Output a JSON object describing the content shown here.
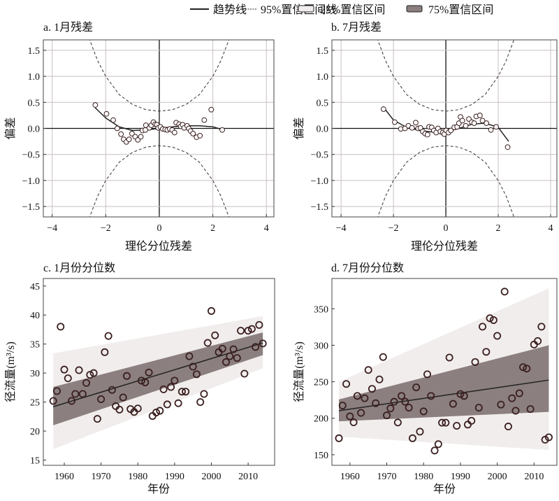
{
  "legend": {
    "items": [
      {
        "label": "趋势线",
        "kind": "line"
      },
      {
        "label": "95%置信区间线",
        "kind": "dashed"
      },
      {
        "label": "25%置信区间",
        "kind": "band-light"
      },
      {
        "label": "75%置信区间",
        "kind": "band-dark"
      }
    ]
  },
  "colors": {
    "band_light": "#f1eded",
    "band_dark": "#8b7f7f",
    "point_stroke": "#3b1f1f",
    "grid": "#c9c1c1",
    "line": "#222222"
  },
  "chart_data": [
    {
      "type": "scatter",
      "title": "a. 1月残差",
      "xlabel": "理伦分位残差",
      "ylabel": "偏差",
      "xlim": [
        -4.33,
        4.28
      ],
      "ylim": [
        -1.7,
        1.7
      ],
      "xticks": [
        -4,
        -2,
        0,
        2,
        4
      ],
      "xtick_labels": [
        "−4",
        "−2",
        "0",
        "2",
        "4"
      ],
      "yticks": [
        1.5,
        1.0,
        0.5,
        0.0,
        -0.5,
        -1.0,
        -1.5
      ],
      "ytick_labels": [
        "1.5",
        "1.0",
        "0.5",
        "0.0",
        "−0.5",
        "−1.0",
        "−1.5"
      ],
      "grid": true,
      "points": [
        [
          -2.39,
          0.45
        ],
        [
          -1.97,
          0.28
        ],
        [
          -1.72,
          0.16
        ],
        [
          -1.57,
          0.0
        ],
        [
          -1.43,
          -0.11
        ],
        [
          -1.33,
          -0.21
        ],
        [
          -1.23,
          -0.26
        ],
        [
          -1.13,
          -0.21
        ],
        [
          -1.02,
          -0.1
        ],
        [
          -0.9,
          -0.16
        ],
        [
          -0.8,
          -0.22
        ],
        [
          -0.69,
          -0.16
        ],
        [
          -0.63,
          -0.04
        ],
        [
          -0.52,
          -0.03
        ],
        [
          -0.5,
          0.06
        ],
        [
          -0.37,
          0.01
        ],
        [
          -0.3,
          0.06
        ],
        [
          -0.22,
          0.12
        ],
        [
          -0.15,
          0.08
        ],
        [
          -0.09,
          0.07
        ],
        [
          -0.04,
          0.01
        ],
        [
          0.04,
          0.03
        ],
        [
          0.13,
          -0.01
        ],
        [
          0.22,
          -0.02
        ],
        [
          0.3,
          -0.03
        ],
        [
          0.39,
          -0.01
        ],
        [
          0.48,
          -0.03
        ],
        [
          0.57,
          -0.08
        ],
        [
          0.63,
          0.11
        ],
        [
          0.74,
          0.08
        ],
        [
          0.8,
          0.04
        ],
        [
          0.87,
          0.07
        ],
        [
          0.93,
          0.01
        ],
        [
          1.04,
          0.05
        ],
        [
          1.1,
          0.0
        ],
        [
          1.17,
          -0.05
        ],
        [
          1.26,
          -0.1
        ],
        [
          1.39,
          -0.17
        ],
        [
          1.52,
          -0.14
        ],
        [
          1.68,
          0.16
        ],
        [
          1.94,
          0.36
        ],
        [
          2.35,
          -0.03
        ]
      ],
      "trend": [
        [
          -2.4,
          0.4
        ],
        [
          -2.0,
          0.2
        ],
        [
          -1.5,
          0.03
        ],
        [
          -1.0,
          -0.04
        ],
        [
          -0.5,
          -0.03
        ],
        [
          0,
          0.0
        ],
        [
          0.5,
          0.03
        ],
        [
          1.0,
          0.05
        ],
        [
          1.5,
          0.05
        ],
        [
          2.0,
          0.03
        ],
        [
          2.4,
          -0.03
        ]
      ],
      "ci95_x": [
        -2.8,
        -2.6,
        -2.3,
        -2.0,
        -1.5,
        -1.0,
        -0.5,
        0,
        0.5,
        1.0,
        1.5,
        2.0,
        2.3,
        2.6,
        2.8
      ],
      "ci95_upper": [
        2.2,
        1.7,
        1.3,
        1.0,
        0.65,
        0.46,
        0.36,
        0.33,
        0.36,
        0.46,
        0.65,
        1.0,
        1.3,
        1.7,
        2.2
      ],
      "ci95_lower": [
        -2.2,
        -1.7,
        -1.3,
        -1.0,
        -0.65,
        -0.46,
        -0.36,
        -0.33,
        -0.36,
        -0.46,
        -0.65,
        -1.0,
        -1.3,
        -1.7,
        -2.2
      ]
    },
    {
      "type": "scatter",
      "title": "b. 7月残差",
      "xlabel": "理伦分位残差",
      "ylabel": "偏差",
      "xlim": [
        -4.35,
        4.24
      ],
      "ylim": [
        -1.7,
        1.7
      ],
      "xticks": [
        -4,
        -2,
        0,
        2,
        4
      ],
      "xtick_labels": [
        "−4",
        "−2",
        "0",
        "2",
        "4"
      ],
      "yticks": [
        1.5,
        1.0,
        0.5,
        0.0,
        -0.5,
        -1.0,
        -1.5
      ],
      "ytick_labels": [
        "1.5",
        "1.0",
        "0.5",
        "0.0",
        "−0.5",
        "−1.0",
        "−1.5"
      ],
      "grid": true,
      "points": [
        [
          -2.38,
          0.37
        ],
        [
          -1.95,
          0.12
        ],
        [
          -1.72,
          -0.01
        ],
        [
          -1.56,
          0.0
        ],
        [
          -1.43,
          0.05
        ],
        [
          -1.29,
          0.01
        ],
        [
          -1.15,
          0.11
        ],
        [
          -1.06,
          0.0
        ],
        [
          -0.97,
          0.01
        ],
        [
          -0.88,
          -0.06
        ],
        [
          -0.79,
          -0.1
        ],
        [
          -0.7,
          -0.12
        ],
        [
          -0.64,
          0.03
        ],
        [
          -0.54,
          0.02
        ],
        [
          -0.46,
          -0.04
        ],
        [
          -0.37,
          -0.08
        ],
        [
          -0.3,
          0.0
        ],
        [
          -0.21,
          -0.06
        ],
        [
          -0.12,
          -0.08
        ],
        [
          -0.06,
          -0.11
        ],
        [
          0.01,
          -0.04
        ],
        [
          0.1,
          -0.08
        ],
        [
          0.19,
          -0.04
        ],
        [
          0.32,
          0.02
        ],
        [
          0.43,
          0.03
        ],
        [
          0.5,
          0.1
        ],
        [
          0.56,
          0.22
        ],
        [
          0.63,
          0.15
        ],
        [
          0.76,
          0.05
        ],
        [
          0.88,
          0.18
        ],
        [
          0.99,
          0.12
        ],
        [
          1.08,
          0.1
        ],
        [
          1.16,
          0.23
        ],
        [
          1.3,
          0.25
        ],
        [
          1.4,
          0.15
        ],
        [
          1.55,
          0.1
        ],
        [
          1.72,
          -0.03
        ],
        [
          1.92,
          0.03
        ],
        [
          2.36,
          -0.36
        ]
      ],
      "trend": [
        [
          -2.4,
          0.42
        ],
        [
          -2.0,
          0.16
        ],
        [
          -1.5,
          0.02
        ],
        [
          -1.0,
          -0.04
        ],
        [
          -0.5,
          -0.07
        ],
        [
          0,
          -0.07
        ],
        [
          0.5,
          0.0
        ],
        [
          1.0,
          0.08
        ],
        [
          1.5,
          0.1
        ],
        [
          2.0,
          0.02
        ],
        [
          2.4,
          -0.25
        ]
      ],
      "ci95_x": [
        -2.8,
        -2.6,
        -2.3,
        -2.0,
        -1.5,
        -1.0,
        -0.5,
        0,
        0.5,
        1.0,
        1.5,
        2.0,
        2.3,
        2.6,
        2.8
      ],
      "ci95_upper": [
        2.2,
        1.7,
        1.3,
        1.0,
        0.65,
        0.46,
        0.36,
        0.33,
        0.36,
        0.46,
        0.65,
        1.0,
        1.3,
        1.7,
        2.2
      ],
      "ci95_lower": [
        -2.2,
        -1.7,
        -1.3,
        -1.0,
        -0.65,
        -0.46,
        -0.36,
        -0.33,
        -0.36,
        -0.46,
        -0.65,
        -1.0,
        -1.3,
        -1.7,
        -2.2
      ]
    },
    {
      "type": "scatter",
      "title": "c. 1月份分位数",
      "xlabel": "年份",
      "ylabel": "径流量(m³/s)",
      "xlim": [
        1954.3,
        2017.2
      ],
      "ylim": [
        14.1,
        46.3
      ],
      "xticks": [
        1960,
        1970,
        1980,
        1990,
        2000,
        2010
      ],
      "xtick_labels": [
        "1960",
        "1970",
        "1980",
        "1990",
        "2000",
        "2010"
      ],
      "yticks": [
        45,
        40,
        35,
        30,
        25,
        20,
        15
      ],
      "ytick_labels": [
        "45",
        "40",
        "35",
        "30",
        "25",
        "20",
        "15"
      ],
      "grid": false,
      "points": [
        [
          1957,
          25.2
        ],
        [
          1958,
          26.9
        ],
        [
          1959,
          38.0
        ],
        [
          1960,
          30.6
        ],
        [
          1961,
          29.1
        ],
        [
          1962,
          25.2
        ],
        [
          1963,
          26.4
        ],
        [
          1964,
          30.5
        ],
        [
          1965,
          26.4
        ],
        [
          1966,
          28.3
        ],
        [
          1967,
          29.7
        ],
        [
          1968,
          30.0
        ],
        [
          1969,
          22.1
        ],
        [
          1970,
          25.5
        ],
        [
          1971,
          33.6
        ],
        [
          1972,
          36.4
        ],
        [
          1973,
          27.1
        ],
        [
          1974,
          24.3
        ],
        [
          1975,
          23.7
        ],
        [
          1976,
          25.8
        ],
        [
          1977,
          29.5
        ],
        [
          1978,
          23.8
        ],
        [
          1979,
          23.3
        ],
        [
          1980,
          23.9
        ],
        [
          1981,
          28.7
        ],
        [
          1982,
          28.4
        ],
        [
          1983,
          30.1
        ],
        [
          1984,
          22.6
        ],
        [
          1985,
          23.2
        ],
        [
          1986,
          23.5
        ],
        [
          1987,
          27.2
        ],
        [
          1988,
          24.6
        ],
        [
          1989,
          27.6
        ],
        [
          1990,
          28.7
        ],
        [
          1991,
          24.8
        ],
        [
          1992,
          26.8
        ],
        [
          1993,
          26.8
        ],
        [
          1994,
          32.9
        ],
        [
          1995,
          31.1
        ],
        [
          1996,
          29.8
        ],
        [
          1997,
          25.0
        ],
        [
          1998,
          26.4
        ],
        [
          1999,
          35.2
        ],
        [
          2000,
          40.7
        ],
        [
          2001,
          36.5
        ],
        [
          2002,
          33.6
        ],
        [
          2003,
          34.2
        ],
        [
          2004,
          31.9
        ],
        [
          2005,
          32.9
        ],
        [
          2006,
          34.1
        ],
        [
          2007,
          32.6
        ],
        [
          2008,
          37.3
        ],
        [
          2009,
          29.9
        ],
        [
          2010,
          37.3
        ],
        [
          2011,
          37.6
        ],
        [
          2012,
          34.5
        ],
        [
          2013,
          38.3
        ],
        [
          2014,
          35.1
        ]
      ],
      "trend": [
        [
          1957,
          24.2
        ],
        [
          2014,
          35.2
        ]
      ],
      "band75": {
        "x": [
          1957,
          2014
        ],
        "lower": [
          21.0,
          33.1
        ],
        "upper": [
          27.6,
          37.0
        ]
      },
      "band25": {
        "x": [
          1957,
          2014
        ],
        "lower": [
          16.9,
          30.8
        ],
        "upper": [
          33.4,
          39.8
        ]
      }
    },
    {
      "type": "scatter",
      "title": "d. 7月份分位数",
      "xlabel": "年份",
      "ylabel": "径流量(m³/s)",
      "xlim": [
        1955.1,
        2016.2
      ],
      "ylim": [
        135.5,
        391.5
      ],
      "xticks": [
        1960,
        1970,
        1980,
        1990,
        2000,
        2010
      ],
      "xtick_labels": [
        "1960",
        "1970",
        "1980",
        "1990",
        "2000",
        "2010"
      ],
      "yticks": [
        350,
        300,
        250,
        200,
        150
      ],
      "ytick_labels": [
        "350",
        "300",
        "250",
        "200",
        "150"
      ],
      "grid": false,
      "points": [
        [
          1957,
          172.6
        ],
        [
          1958,
          217.4
        ],
        [
          1959,
          247
        ],
        [
          1960,
          202.6
        ],
        [
          1961,
          194.5
        ],
        [
          1962,
          230.6
        ],
        [
          1963,
          207.4
        ],
        [
          1964,
          227.4
        ],
        [
          1965,
          266.1
        ],
        [
          1966,
          240.3
        ],
        [
          1967,
          220.6
        ],
        [
          1968,
          253.2
        ],
        [
          1969,
          283.9
        ],
        [
          1970,
          203.9
        ],
        [
          1971,
          213.5
        ],
        [
          1972,
          222.6
        ],
        [
          1973,
          194.2
        ],
        [
          1974,
          230.6
        ],
        [
          1975,
          222.6
        ],
        [
          1976,
          214.5
        ],
        [
          1977,
          172.6
        ],
        [
          1978,
          242.3
        ],
        [
          1979,
          181.6
        ],
        [
          1980,
          209.4
        ],
        [
          1981,
          260.3
        ],
        [
          1982,
          230.6
        ],
        [
          1983,
          155.8
        ],
        [
          1984,
          164.5
        ],
        [
          1985,
          193.9
        ],
        [
          1986,
          193.9
        ],
        [
          1987,
          283.2
        ],
        [
          1988,
          219.7
        ],
        [
          1989,
          189.7
        ],
        [
          1990,
          233.2
        ],
        [
          1991,
          230.6
        ],
        [
          1992,
          191.3
        ],
        [
          1993,
          196.5
        ],
        [
          1994,
          277.1
        ],
        [
          1995,
          214.5
        ],
        [
          1996,
          325.5
        ],
        [
          1997,
          291
        ],
        [
          1998,
          337.1
        ],
        [
          1999,
          334.5
        ],
        [
          2000,
          312.9
        ],
        [
          2001,
          218.7
        ],
        [
          2002,
          373.5
        ],
        [
          2003,
          188.7
        ],
        [
          2004,
          227.4
        ],
        [
          2005,
          210.3
        ],
        [
          2006,
          234.2
        ],
        [
          2007,
          270
        ],
        [
          2008,
          268.1
        ],
        [
          2009,
          212.6
        ],
        [
          2010,
          301
        ],
        [
          2011,
          305.8
        ],
        [
          2012,
          325.5
        ],
        [
          2013,
          170.6
        ],
        [
          2014,
          173.9
        ]
      ],
      "trend": [
        [
          1957,
          210.3
        ],
        [
          2014,
          252.3
        ]
      ],
      "band75": {
        "x": [
          1957,
          2014
        ],
        "lower": [
          195.8,
          208.7
        ],
        "upper": [
          225.8,
          300.0
        ]
      },
      "band25": {
        "x": [
          1957,
          2014
        ],
        "lower": [
          174.8,
          156.5
        ],
        "upper": [
          250.0,
          378.0
        ]
      }
    }
  ]
}
